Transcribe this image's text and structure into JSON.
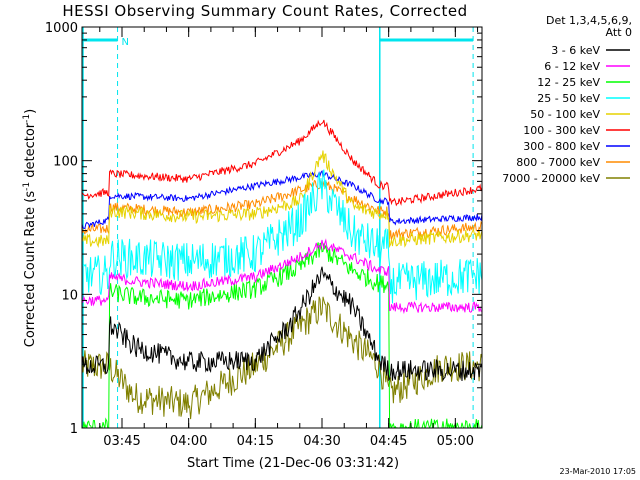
{
  "chart_data": {
    "type": "line",
    "title": "HESSI Observing Summary Count Rates, Corrected",
    "xlabel": "Start Time (21-Dec-06 03:31:42)",
    "ylabel_main": "Corrected Count Rate (s",
    "ylabel_sup1": "-1",
    "ylabel_mid": " detector",
    "ylabel_sup2": "-1",
    "ylabel_end": ")",
    "y_scale": "log",
    "ylim": [
      1,
      1000
    ],
    "y_ticks": [
      {
        "value": 1,
        "label": "1"
      },
      {
        "value": 10,
        "label": "10"
      },
      {
        "value": 100,
        "label": "100"
      },
      {
        "value": 1000,
        "label": "1000"
      }
    ],
    "xlim_minutes": [
      -9,
      81
    ],
    "x_ticks": [
      {
        "minute": 0,
        "label": "03:45"
      },
      {
        "minute": 15,
        "label": "04:00"
      },
      {
        "minute": 30,
        "label": "04:15"
      },
      {
        "minute": 45,
        "label": "04:30"
      },
      {
        "minute": 60,
        "label": "04:45"
      },
      {
        "minute": 75,
        "label": "05:00"
      }
    ],
    "legend_header": [
      "Det 1,3,4,5,6,9,",
      "Att 0"
    ],
    "legend_position": "outside-right",
    "footer_timestamp": "23-Mar-2010 17:05",
    "flag": {
      "label": "N",
      "level": 800,
      "color": "#00e5ee"
    },
    "night_markers": [
      -1,
      58,
      79
    ],
    "series": [
      {
        "name": "3 - 6 keV",
        "color": "#000000",
        "noise": 0.08,
        "keys": [
          [
            -9,
            2.9
          ],
          [
            -3,
            2.9
          ],
          [
            -3,
            6
          ],
          [
            3,
            4
          ],
          [
            15,
            3.1
          ],
          [
            30,
            3.2
          ],
          [
            38,
            6
          ],
          [
            45,
            14
          ],
          [
            52,
            8
          ],
          [
            58,
            3.2
          ],
          [
            60,
            2.7
          ],
          [
            72,
            2.7
          ],
          [
            81,
            2.7
          ]
        ]
      },
      {
        "name": "6 - 12 keV",
        "color": "#ff00ff",
        "noise": 0.04,
        "keys": [
          [
            -9,
            9
          ],
          [
            -3,
            9
          ],
          [
            -3,
            13.5
          ],
          [
            3,
            12.5
          ],
          [
            15,
            11.5
          ],
          [
            30,
            13.5
          ],
          [
            40,
            19
          ],
          [
            45,
            24
          ],
          [
            52,
            19
          ],
          [
            58,
            15
          ],
          [
            60,
            15
          ],
          [
            60,
            8
          ],
          [
            81,
            8
          ]
        ]
      },
      {
        "name": "12 - 25 keV",
        "color": "#00ff00",
        "noise": 0.07,
        "keys": [
          [
            -9,
            1.0
          ],
          [
            -3,
            1.0
          ],
          [
            -3,
            10.5
          ],
          [
            3,
            9.5
          ],
          [
            15,
            9
          ],
          [
            30,
            11
          ],
          [
            40,
            16
          ],
          [
            45,
            22
          ],
          [
            52,
            15
          ],
          [
            58,
            12
          ],
          [
            60,
            12
          ],
          [
            60,
            1.0
          ],
          [
            81,
            1.0
          ]
        ]
      },
      {
        "name": "25 - 50 keV",
        "color": "#00ffff",
        "noise": 0.15,
        "keys": [
          [
            -9,
            14
          ],
          [
            -3,
            14
          ],
          [
            -3,
            19
          ],
          [
            15,
            17.5
          ],
          [
            30,
            20
          ],
          [
            40,
            35
          ],
          [
            45,
            65
          ],
          [
            52,
            28
          ],
          [
            58,
            22
          ],
          [
            60,
            22
          ],
          [
            60,
            12
          ],
          [
            81,
            14
          ]
        ]
      },
      {
        "name": "50 - 100 keV",
        "color": "#e6d200",
        "noise": 0.05,
        "keys": [
          [
            -9,
            25
          ],
          [
            -3,
            25
          ],
          [
            -3,
            42
          ],
          [
            15,
            38
          ],
          [
            30,
            40
          ],
          [
            40,
            50
          ],
          [
            45,
            112
          ],
          [
            52,
            45
          ],
          [
            58,
            40
          ],
          [
            60,
            40
          ],
          [
            60,
            25
          ],
          [
            81,
            28
          ]
        ]
      },
      {
        "name": "100 - 300 keV",
        "color": "#ff0000",
        "noise": 0.03,
        "keys": [
          [
            -9,
            55
          ],
          [
            -3,
            58
          ],
          [
            -3,
            80
          ],
          [
            15,
            73
          ],
          [
            30,
            95
          ],
          [
            40,
            140
          ],
          [
            45,
            200
          ],
          [
            52,
            100
          ],
          [
            58,
            65
          ],
          [
            60,
            65
          ],
          [
            60,
            48
          ],
          [
            81,
            62
          ]
        ]
      },
      {
        "name": "300 - 800 keV",
        "color": "#0000ff",
        "noise": 0.025,
        "keys": [
          [
            -9,
            32
          ],
          [
            -3,
            36
          ],
          [
            -3,
            55
          ],
          [
            15,
            52
          ],
          [
            30,
            65
          ],
          [
            40,
            75
          ],
          [
            45,
            80
          ],
          [
            52,
            65
          ],
          [
            58,
            50
          ],
          [
            60,
            50
          ],
          [
            60,
            35
          ],
          [
            81,
            38
          ]
        ]
      },
      {
        "name": "800 - 7000 keV",
        "color": "#ff8c00",
        "noise": 0.04,
        "keys": [
          [
            -9,
            30
          ],
          [
            -3,
            31
          ],
          [
            -3,
            45
          ],
          [
            15,
            41
          ],
          [
            30,
            47
          ],
          [
            40,
            60
          ],
          [
            45,
            68
          ],
          [
            52,
            52
          ],
          [
            58,
            42
          ],
          [
            60,
            42
          ],
          [
            60,
            28
          ],
          [
            81,
            32
          ]
        ]
      },
      {
        "name": "7000 - 20000 keV",
        "color": "#808000",
        "noise": 0.12,
        "keys": [
          [
            -9,
            2.9
          ],
          [
            -3,
            2.9
          ],
          [
            -3,
            2.9
          ],
          [
            3,
            1.7
          ],
          [
            15,
            1.5
          ],
          [
            30,
            2.9
          ],
          [
            38,
            5
          ],
          [
            45,
            8
          ],
          [
            52,
            4.5
          ],
          [
            58,
            2.9
          ],
          [
            60,
            1.8
          ],
          [
            72,
            2.9
          ],
          [
            81,
            2.9
          ]
        ]
      }
    ]
  }
}
